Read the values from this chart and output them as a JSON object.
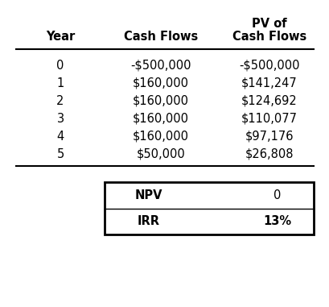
{
  "col_headers": [
    "Year",
    "Cash Flows",
    "PV of\nCash Flows"
  ],
  "rows": [
    [
      "0",
      "-$500,000",
      "-$500,000"
    ],
    [
      "1",
      "$160,000",
      "$141,247"
    ],
    [
      "2",
      "$160,000",
      "$124,692"
    ],
    [
      "3",
      "$160,000",
      "$110,077"
    ],
    [
      "4",
      "$160,000",
      "$97,176"
    ],
    [
      "5",
      "$50,000",
      "$26,808"
    ]
  ],
  "summary_labels": [
    "NPV",
    "IRR"
  ],
  "summary_values": [
    "0",
    "13%"
  ],
  "background_color": "#ffffff",
  "text_color": "#000000",
  "header_fontsize": 10.5,
  "data_fontsize": 10.5,
  "summary_fontsize": 10.5
}
